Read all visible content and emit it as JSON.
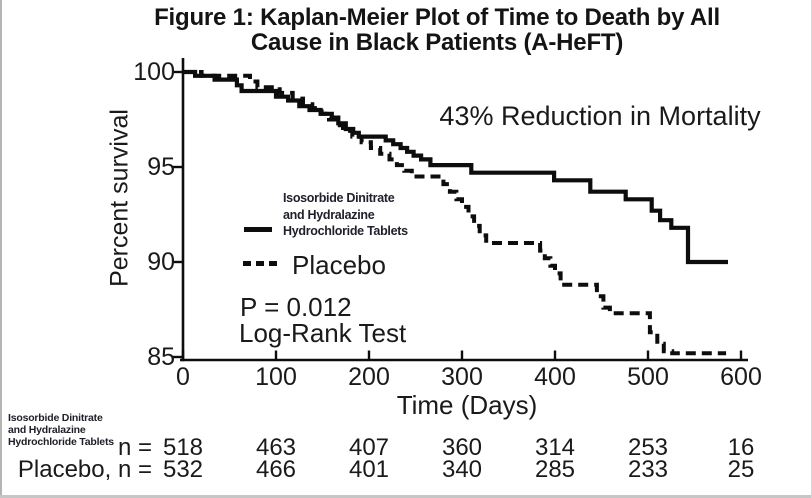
{
  "figure": {
    "title_line1": "Figure 1: Kaplan-Meier Plot of Time to Death by All",
    "title_line2": "Cause in Black Patients (A-HeFT)",
    "annotation": "43% Reduction in Mortality",
    "stats_line1": "P = 0.012",
    "stats_line2": "Log-Rank Test",
    "ink_color": "#0d0d0d",
    "background_color": "#ffffff"
  },
  "legend": {
    "series1_label_lines": [
      "Isosorbide Dinitrate",
      "and Hydralazine",
      "Hydrochloride Tablets"
    ],
    "series2_label": "Placebo"
  },
  "chart_data": {
    "type": "line",
    "subtype": "kaplan-meier-step",
    "title": "Figure 1: Kaplan-Meier Plot of Time to Death by All Cause in Black Patients (A-HeFT)",
    "xlabel": "Time (Days)",
    "ylabel": "Percent survival",
    "xlim": [
      0,
      600
    ],
    "ylim": [
      85,
      100
    ],
    "xticks": [
      0,
      100,
      200,
      300,
      400,
      500,
      600
    ],
    "yticks": [
      100,
      95,
      90,
      85
    ],
    "grid": false,
    "legend_position": "center-left",
    "annotation": "43% Reduction in Mortality",
    "p_value": "P = 0.012",
    "test": "Log-Rank Test",
    "series": [
      {
        "name": "Isosorbide Dinitrate and Hydralazine Hydrochloride Tablets",
        "line_style": "solid",
        "points": [
          [
            0,
            100
          ],
          [
            13,
            99.8
          ],
          [
            34,
            99.6
          ],
          [
            58,
            99.3
          ],
          [
            63,
            99.0
          ],
          [
            100,
            98.7
          ],
          [
            113,
            98.5
          ],
          [
            125,
            98.2
          ],
          [
            136,
            98.0
          ],
          [
            148,
            97.8
          ],
          [
            160,
            97.6
          ],
          [
            167,
            97.3
          ],
          [
            175,
            97.0
          ],
          [
            183,
            96.8
          ],
          [
            189,
            96.6
          ],
          [
            218,
            96.4
          ],
          [
            226,
            96.2
          ],
          [
            234,
            96.0
          ],
          [
            241,
            95.8
          ],
          [
            248,
            95.6
          ],
          [
            256,
            95.4
          ],
          [
            266,
            95.1
          ],
          [
            310,
            94.7
          ],
          [
            399,
            94.3
          ],
          [
            438,
            93.7
          ],
          [
            476,
            93.3
          ],
          [
            504,
            92.7
          ],
          [
            513,
            92.2
          ],
          [
            525,
            91.8
          ],
          [
            543,
            90.0
          ],
          [
            586,
            90.0
          ]
        ]
      },
      {
        "name": "Placebo",
        "line_style": "dashed",
        "points": [
          [
            0,
            100
          ],
          [
            20,
            99.8
          ],
          [
            72,
            99.5
          ],
          [
            80,
            99.2
          ],
          [
            104,
            98.9
          ],
          [
            118,
            98.6
          ],
          [
            129,
            98.3
          ],
          [
            139,
            98.1
          ],
          [
            149,
            97.8
          ],
          [
            157,
            97.5
          ],
          [
            164,
            97.2
          ],
          [
            172,
            96.9
          ],
          [
            182,
            96.6
          ],
          [
            192,
            96.3
          ],
          [
            202,
            96.0
          ],
          [
            212,
            95.7
          ],
          [
            222,
            95.4
          ],
          [
            230,
            95.1
          ],
          [
            238,
            94.8
          ],
          [
            246,
            94.5
          ],
          [
            280,
            94.1
          ],
          [
            287,
            93.7
          ],
          [
            294,
            93.3
          ],
          [
            300,
            92.9
          ],
          [
            307,
            92.4
          ],
          [
            313,
            91.9
          ],
          [
            319,
            91.4
          ],
          [
            326,
            91.0
          ],
          [
            384,
            90.6
          ],
          [
            389,
            90.2
          ],
          [
            395,
            89.8
          ],
          [
            400,
            89.4
          ],
          [
            406,
            88.8
          ],
          [
            445,
            88.2
          ],
          [
            452,
            87.6
          ],
          [
            459,
            87.3
          ],
          [
            502,
            86.3
          ],
          [
            510,
            85.7
          ],
          [
            517,
            85.3
          ],
          [
            526,
            85.2
          ],
          [
            584,
            85.2
          ]
        ]
      }
    ],
    "at_risk": {
      "row1_label_lines": [
        "Isosorbide Dinitrate",
        "and Hydralazine",
        "Hydrochloride Tablets"
      ],
      "row1_prefix": "n =",
      "row1_counts": [
        518,
        463,
        407,
        360,
        314,
        253,
        16
      ],
      "row2_prefix": "Placebo, n =",
      "row2_counts": [
        532,
        466,
        401,
        340,
        285,
        233,
        25
      ]
    }
  }
}
